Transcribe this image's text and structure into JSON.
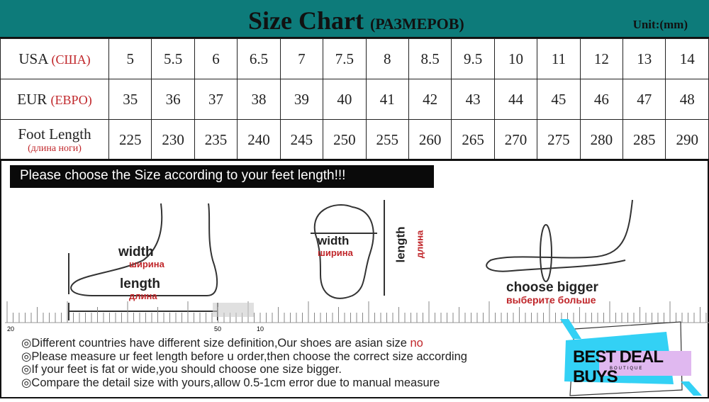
{
  "header": {
    "title": "Size Chart",
    "title_ru": "(РАЗМЕРОВ)",
    "unit": "Unit:(mm)",
    "color": "#0d7b7a"
  },
  "table": {
    "rows": [
      {
        "label": "USA",
        "label_ru": "(США)",
        "values": [
          "5",
          "5.5",
          "6",
          "6.5",
          "7",
          "7.5",
          "8",
          "8.5",
          "9.5",
          "10",
          "11",
          "12",
          "13",
          "14"
        ]
      },
      {
        "label": "EUR",
        "label_ru": "(ЕВРО)",
        "values": [
          "35",
          "36",
          "37",
          "38",
          "39",
          "40",
          "41",
          "42",
          "43",
          "44",
          "45",
          "46",
          "47",
          "48"
        ]
      },
      {
        "label": "Foot Length",
        "label_ru": "(длина ноги)",
        "values": [
          "225",
          "230",
          "235",
          "240",
          "245",
          "250",
          "255",
          "260",
          "265",
          "270",
          "275",
          "280",
          "285",
          "290"
        ]
      }
    ]
  },
  "banner": "Please choose the Size according to your feet length!!!",
  "illustrations": {
    "side": {
      "width": "width",
      "width_ru": "ширина",
      "length": "length",
      "length_ru": "длина"
    },
    "sole": {
      "width": "width",
      "width_ru": "ширина",
      "length": "length",
      "length_ru": "длина"
    },
    "toe": {
      "text": "choose bigger",
      "text_ru": "выберите больше"
    }
  },
  "ruler": {
    "labels": [
      "20",
      "50",
      "10"
    ]
  },
  "notes": [
    {
      "text": "◎Different countries have different size definition,Our shoes are asian size ",
      "red": "no"
    },
    {
      "text": "◎Please measure ur feet length before u order,then choose the correct size according",
      "red": ""
    },
    {
      "text": "◎If your feet is fat or wide,you should choose one size bigger.",
      "red": ""
    },
    {
      "text": "◎Compare the detail size with yours,allow 0.5-1cm error due to manual measure",
      "red": ""
    }
  ],
  "logo": {
    "text": "BEST DEAL BUYS",
    "sub": "BOUTIQUE",
    "colors": [
      "#33d1f5",
      "#e0b8f0"
    ]
  },
  "accent_red": "#c0262a"
}
